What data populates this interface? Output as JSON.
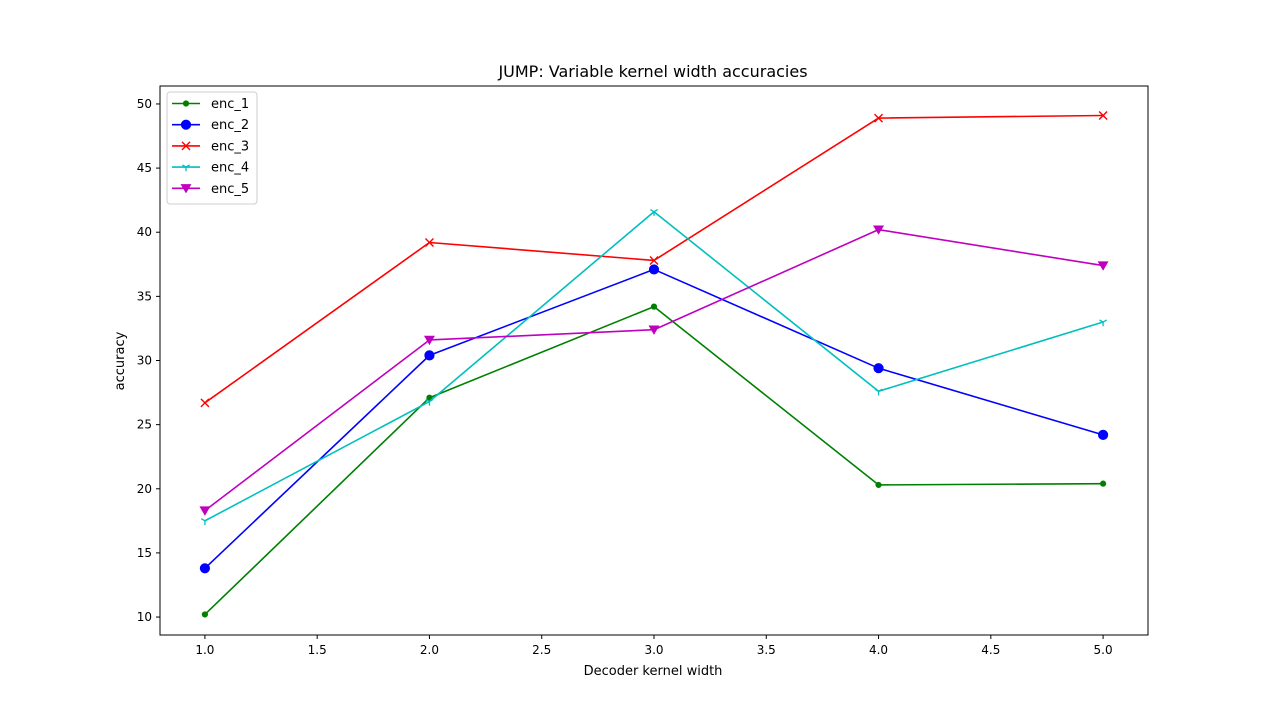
{
  "chart_data": {
    "type": "line",
    "title": "JUMP: Variable kernel width accuracies",
    "xlabel": "Decoder kernel width",
    "ylabel": "accuracy",
    "x": [
      1.0,
      2.0,
      3.0,
      4.0,
      5.0
    ],
    "xlim": [
      0.8,
      5.2
    ],
    "ylim": [
      8.6,
      51.4
    ],
    "x_ticks": [
      1.0,
      1.5,
      2.0,
      2.5,
      3.0,
      3.5,
      4.0,
      4.5,
      5.0
    ],
    "x_tick_labels": [
      "1.0",
      "1.5",
      "2.0",
      "2.5",
      "3.0",
      "3.5",
      "4.0",
      "4.5",
      "5.0"
    ],
    "y_ticks": [
      10,
      15,
      20,
      25,
      30,
      35,
      40,
      45,
      50
    ],
    "y_tick_labels": [
      "10",
      "15",
      "20",
      "25",
      "30",
      "35",
      "40",
      "45",
      "50"
    ],
    "grid": false,
    "legend_position": "top-left",
    "series": [
      {
        "name": "enc_1",
        "color": "#008000",
        "marker": "point",
        "values": [
          10.2,
          27.1,
          34.2,
          20.3,
          20.4
        ]
      },
      {
        "name": "enc_2",
        "color": "#0000ff",
        "marker": "circle",
        "values": [
          13.8,
          30.4,
          37.1,
          29.4,
          24.2
        ]
      },
      {
        "name": "enc_3",
        "color": "#ff0000",
        "marker": "x",
        "values": [
          26.7,
          39.2,
          37.8,
          48.9,
          49.1
        ]
      },
      {
        "name": "enc_4",
        "color": "#00bfbf",
        "marker": "tri",
        "values": [
          17.5,
          26.8,
          41.6,
          27.6,
          33.0
        ]
      },
      {
        "name": "enc_5",
        "color": "#bf00bf",
        "marker": "triangle-down",
        "values": [
          18.3,
          31.6,
          32.4,
          40.2,
          37.4
        ]
      }
    ]
  }
}
